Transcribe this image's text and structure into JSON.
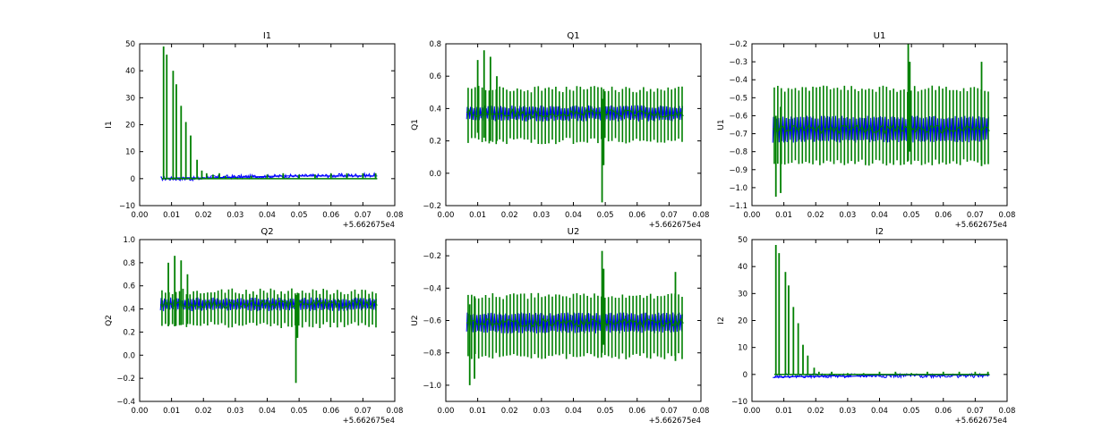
{
  "colors": {
    "series_blue": "#0000ff",
    "series_green": "#008000",
    "axis": "#000000",
    "background": "#ffffff"
  },
  "chart_data": [
    {
      "type": "line",
      "title": "I1",
      "xlabel": "",
      "ylabel": "I1",
      "xlim": [
        0.0,
        0.08
      ],
      "ylim": [
        -10,
        50
      ],
      "x_ticks": [
        "0.00",
        "0.01",
        "0.02",
        "0.03",
        "0.04",
        "0.05",
        "0.06",
        "0.07",
        "0.08"
      ],
      "y_ticks": [
        "−10",
        "0",
        "10",
        "20",
        "30",
        "40",
        "50"
      ],
      "x_offset_label": "+5.662675e4",
      "grid": false,
      "series": [
        {
          "color": "#0000ff",
          "points": [
            [
              0.007,
              0.0
            ],
            [
              0.01,
              0.2
            ],
            [
              0.015,
              0.3
            ],
            [
              0.02,
              0.2
            ],
            [
              0.025,
              0.4
            ],
            [
              0.03,
              0.5
            ],
            [
              0.035,
              0.6
            ],
            [
              0.04,
              0.8
            ],
            [
              0.045,
              1.0
            ],
            [
              0.05,
              1.0
            ],
            [
              0.055,
              1.0
            ],
            [
              0.06,
              1.0
            ],
            [
              0.065,
              1.0
            ],
            [
              0.07,
              1.0
            ],
            [
              0.0745,
              1.0
            ]
          ]
        },
        {
          "color": "#008000",
          "spikes": [
            [
              0.0075,
              49
            ],
            [
              0.0085,
              46
            ],
            [
              0.0105,
              40
            ],
            [
              0.0115,
              35
            ],
            [
              0.013,
              27
            ],
            [
              0.0145,
              21
            ],
            [
              0.016,
              16
            ],
            [
              0.018,
              7
            ],
            [
              0.0195,
              3
            ],
            [
              0.021,
              2
            ],
            [
              0.023,
              1.5
            ],
            [
              0.025,
              2
            ],
            [
              0.027,
              1
            ],
            [
              0.03,
              0.5
            ],
            [
              0.035,
              1
            ],
            [
              0.04,
              1.5
            ],
            [
              0.045,
              2
            ],
            [
              0.05,
              1.5
            ],
            [
              0.055,
              1.5
            ],
            [
              0.06,
              2
            ],
            [
              0.065,
              2
            ],
            [
              0.07,
              2
            ],
            [
              0.074,
              2
            ]
          ]
        }
      ]
    },
    {
      "type": "line",
      "title": "Q1",
      "xlabel": "",
      "ylabel": "Q1",
      "xlim": [
        0.0,
        0.08
      ],
      "ylim": [
        -0.2,
        0.8
      ],
      "x_ticks": [
        "0.00",
        "0.01",
        "0.02",
        "0.03",
        "0.04",
        "0.05",
        "0.06",
        "0.07",
        "0.08"
      ],
      "y_ticks": [
        "−0.2",
        "0.0",
        "0.2",
        "0.4",
        "0.6",
        "0.8"
      ],
      "x_offset_label": "+5.662675e4",
      "grid": false,
      "band": {
        "x0": 0.0065,
        "x1": 0.0745,
        "blue_lo": 0.32,
        "blue_hi": 0.42,
        "green_lo": 0.2,
        "green_hi": 0.52
      },
      "peaks": [
        [
          0.01,
          0.7,
          0.25
        ],
        [
          0.012,
          0.76,
          0.22
        ],
        [
          0.014,
          0.72,
          0.2
        ],
        [
          0.016,
          0.6,
          0.2
        ],
        [
          0.049,
          0.46,
          -0.18
        ],
        [
          0.0495,
          0.52,
          0.05
        ]
      ]
    },
    {
      "type": "line",
      "title": "U1",
      "xlabel": "",
      "ylabel": "U1",
      "xlim": [
        0.0,
        0.08
      ],
      "ylim": [
        -1.1,
        -0.2
      ],
      "x_ticks": [
        "0.00",
        "0.01",
        "0.02",
        "0.03",
        "0.04",
        "0.05",
        "0.06",
        "0.07",
        "0.08"
      ],
      "y_ticks": [
        "−1.1",
        "−1.0",
        "−0.9",
        "−0.8",
        "−0.7",
        "−0.6",
        "−0.5",
        "−0.4",
        "−0.3",
        "−0.2"
      ],
      "x_offset_label": "+5.662675e4",
      "grid": false,
      "band": {
        "x0": 0.0065,
        "x1": 0.0745,
        "blue_lo": -0.75,
        "blue_hi": -0.6,
        "green_lo": -0.86,
        "green_hi": -0.45
      },
      "peaks": [
        [
          0.0075,
          -0.6,
          -1.05
        ],
        [
          0.009,
          -0.55,
          -1.03
        ],
        [
          0.049,
          -0.2,
          -0.85
        ],
        [
          0.0495,
          -0.3,
          -0.8
        ],
        [
          0.072,
          -0.3,
          -0.88
        ]
      ]
    },
    {
      "type": "line",
      "title": "Q2",
      "xlabel": "",
      "ylabel": "Q2",
      "xlim": [
        0.0,
        0.08
      ],
      "ylim": [
        -0.4,
        1.0
      ],
      "x_ticks": [
        "0.00",
        "0.01",
        "0.02",
        "0.03",
        "0.04",
        "0.05",
        "0.06",
        "0.07",
        "0.08"
      ],
      "y_ticks": [
        "−0.4",
        "−0.2",
        "0.0",
        "0.2",
        "0.4",
        "0.6",
        "0.8",
        "1.0"
      ],
      "x_offset_label": "+5.662675e4",
      "grid": false,
      "band": {
        "x0": 0.0065,
        "x1": 0.0745,
        "blue_lo": 0.38,
        "blue_hi": 0.5,
        "green_lo": 0.26,
        "green_hi": 0.55
      },
      "peaks": [
        [
          0.009,
          0.8,
          0.25
        ],
        [
          0.011,
          0.86,
          0.25
        ],
        [
          0.013,
          0.82,
          0.26
        ],
        [
          0.015,
          0.7,
          0.27
        ],
        [
          0.049,
          0.52,
          -0.24
        ],
        [
          0.0495,
          0.54,
          0.15
        ]
      ]
    },
    {
      "type": "line",
      "title": "U2",
      "xlabel": "",
      "ylabel": "U2",
      "xlim": [
        0.0,
        0.08
      ],
      "ylim": [
        -1.1,
        -0.1
      ],
      "x_ticks": [
        "0.00",
        "0.01",
        "0.02",
        "0.03",
        "0.04",
        "0.05",
        "0.06",
        "0.07",
        "0.08"
      ],
      "y_ticks": [
        "−1.0",
        "−0.8",
        "−0.6",
        "−0.4",
        "−0.2"
      ],
      "x_offset_label": "+5.662675e4",
      "grid": false,
      "band": {
        "x0": 0.0065,
        "x1": 0.0745,
        "blue_lo": -0.68,
        "blue_hi": -0.55,
        "green_lo": -0.82,
        "green_hi": -0.45
      },
      "peaks": [
        [
          0.0075,
          -0.5,
          -1.0
        ],
        [
          0.009,
          -0.45,
          -0.96
        ],
        [
          0.049,
          -0.17,
          -0.8
        ],
        [
          0.0495,
          -0.28,
          -0.75
        ],
        [
          0.072,
          -0.3,
          -0.85
        ]
      ]
    },
    {
      "type": "line",
      "title": "I2",
      "xlabel": "",
      "ylabel": "I2",
      "xlim": [
        0.0,
        0.08
      ],
      "ylim": [
        -10,
        50
      ],
      "x_ticks": [
        "0.00",
        "0.01",
        "0.02",
        "0.03",
        "0.04",
        "0.05",
        "0.06",
        "0.07",
        "0.08"
      ],
      "y_ticks": [
        "−10",
        "0",
        "10",
        "20",
        "30",
        "40",
        "50"
      ],
      "x_offset_label": "+5.662675e4",
      "grid": false,
      "series": [
        {
          "color": "#0000ff",
          "points": [
            [
              0.007,
              -1.0
            ],
            [
              0.015,
              -0.8
            ],
            [
              0.02,
              -0.8
            ],
            [
              0.025,
              -0.5
            ],
            [
              0.03,
              -0.8
            ],
            [
              0.035,
              -0.5
            ],
            [
              0.04,
              -0.3
            ],
            [
              0.045,
              -0.2
            ],
            [
              0.05,
              -0.2
            ],
            [
              0.055,
              -0.3
            ],
            [
              0.06,
              -0.2
            ],
            [
              0.065,
              -0.3
            ],
            [
              0.07,
              -0.2
            ],
            [
              0.0745,
              -0.3
            ]
          ]
        },
        {
          "color": "#008000",
          "spikes": [
            [
              0.0075,
              48
            ],
            [
              0.0085,
              45
            ],
            [
              0.0105,
              38
            ],
            [
              0.0115,
              33
            ],
            [
              0.013,
              25
            ],
            [
              0.0145,
              19
            ],
            [
              0.016,
              11
            ],
            [
              0.0175,
              7
            ],
            [
              0.0195,
              2.5
            ],
            [
              0.021,
              1
            ],
            [
              0.025,
              1
            ],
            [
              0.03,
              0.5
            ],
            [
              0.035,
              0.5
            ],
            [
              0.04,
              1
            ],
            [
              0.045,
              1
            ],
            [
              0.05,
              0.5
            ],
            [
              0.055,
              1
            ],
            [
              0.06,
              1
            ],
            [
              0.065,
              1
            ],
            [
              0.07,
              1
            ],
            [
              0.074,
              1
            ]
          ]
        }
      ]
    }
  ]
}
